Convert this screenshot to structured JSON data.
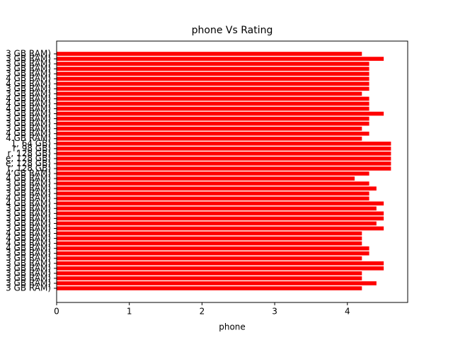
{
  "chart_data": {
    "type": "barh",
    "title": "phone Vs Rating",
    "xlabel": "phone",
    "color": "#ff0000",
    "categories": [
      "3 GB RAM)",
      "3 GB RAM)",
      "3 GB RAM)",
      "3 GB RAM)",
      "3 GB RAM)",
      "4 GB RAM)",
      "4 GB RAM)",
      "3 GB RAM)",
      "3 GB RAM)",
      "4 GB RAM)",
      "4 GB RAM)",
      "4 GB RAM)",
      "3 GB RAM)",
      "3 GB RAM)",
      "3 GB RAM)",
      "3 GB RAM)",
      "4 GB RAM)",
      "4 GB RAM)",
      "1, 64 GB)",
      "r, 98 GB)",
      "r, 128 GB)",
      "e, 128 GB)",
      "e, 128 GB)",
      "r, 128 GB)",
      "4 GB RAM)",
      "4 GB RAM)",
      "3 GB RAM)",
      "3 GB RAM)",
      "3 GB RAM)",
      "4 GB RAM)",
      "4 GB RAM)",
      "3 GB RAM)",
      "3 GB RAM)",
      "3 GB RAM)",
      "3 GB RAM)",
      "3 GB RAM)",
      "4 GB RAM)",
      "4 GB RAM)",
      "4 GB RAM)",
      "4 GB RAM)",
      "3 GB RAM)",
      "3 GB RAM)",
      "3 GB RAM)",
      "3 GB RAM)",
      "3 GB RAM)",
      "3 GB RAM)",
      "3 GB RAM)",
      "3 GB RAM)"
    ],
    "values": [
      4.2,
      4.5,
      4.3,
      4.3,
      4.3,
      4.3,
      4.3,
      4.3,
      4.2,
      4.3,
      4.3,
      4.3,
      4.5,
      4.3,
      4.3,
      4.2,
      4.3,
      4.2,
      4.6,
      4.6,
      4.6,
      4.6,
      4.6,
      4.6,
      4.3,
      4.1,
      4.3,
      4.4,
      4.3,
      4.3,
      4.5,
      4.4,
      4.5,
      4.5,
      4.4,
      4.5,
      4.2,
      4.2,
      4.2,
      4.3,
      4.3,
      4.2,
      4.5,
      4.5,
      4.2,
      4.2,
      4.4,
      4.2
    ],
    "xlim": [
      0,
      4.83
    ],
    "xticks": [
      0,
      1,
      2,
      3,
      4
    ]
  }
}
